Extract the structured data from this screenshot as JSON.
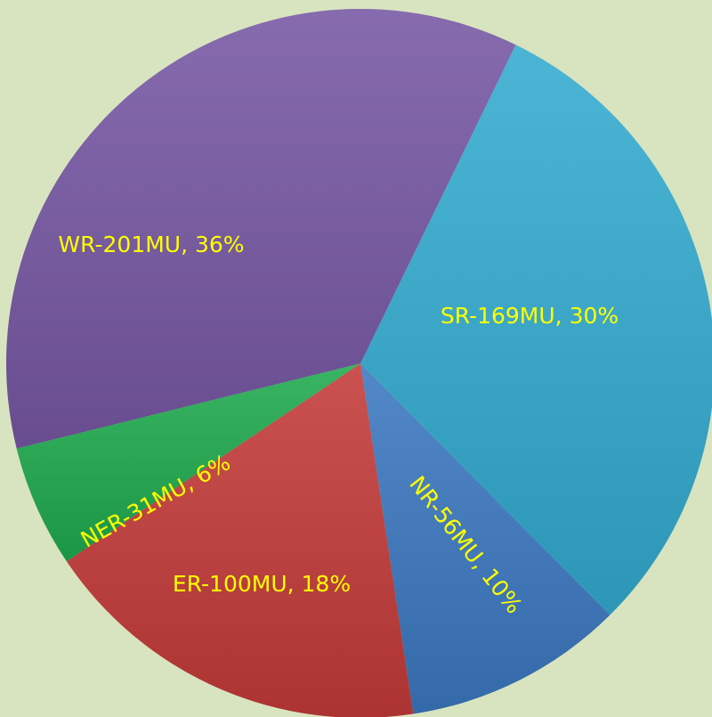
{
  "chart_data": {
    "type": "pie",
    "values": [
      169,
      56,
      100,
      31,
      201
    ],
    "value_labels": [
      "SR-169MU, 30%",
      "NR-56MU, 10%",
      "ER-100MU, 18%",
      "NER-31MU, 6%",
      "WR-201MU, 36%"
    ],
    "colors": [
      "#33abd0",
      "#3b78c0",
      "#c33a38",
      "#1eaa4e",
      "#7657a3"
    ],
    "label_color": "#ffff00",
    "background": "#d8e4bf"
  }
}
